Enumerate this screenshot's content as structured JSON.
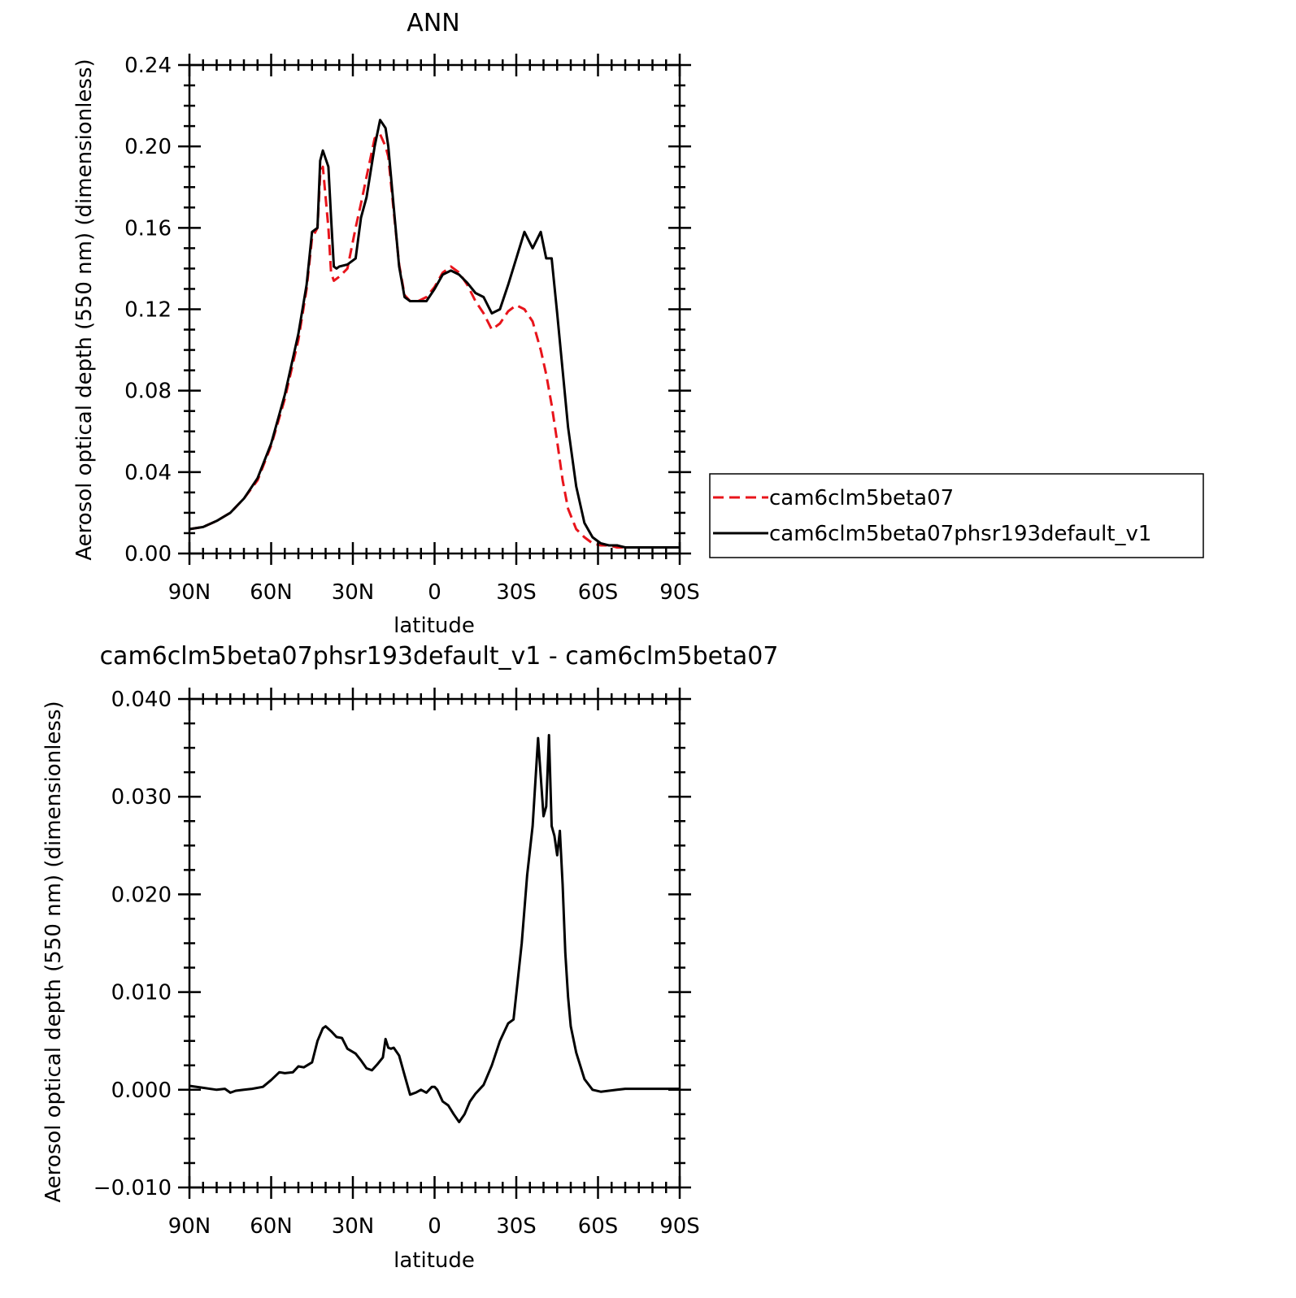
{
  "chart_data": [
    {
      "type": "line",
      "title": "ANN",
      "xlabel": "latitude",
      "ylabel": "Aerosol optical depth (550 nm) (dimensionless)",
      "xlim": [
        90,
        -90
      ],
      "ylim": [
        0,
        0.24
      ],
      "xtick_values": [
        90,
        60,
        30,
        0,
        -30,
        -60,
        -90
      ],
      "xtick_labels": [
        "90N",
        "60N",
        "30N",
        "0",
        "30S",
        "60S",
        "90S"
      ],
      "ytick_values": [
        0,
        0.04,
        0.08,
        0.12,
        0.16,
        0.2,
        0.24
      ],
      "ytick_labels": [
        "0.00",
        "0.04",
        "0.08",
        "0.12",
        "0.16",
        "0.20",
        "0.24"
      ],
      "legend": "right",
      "grid": false,
      "x": [
        90,
        85,
        80,
        75,
        70,
        65,
        60,
        55,
        50,
        47,
        45,
        43,
        42,
        41,
        39,
        38,
        37,
        36,
        35,
        32,
        29,
        27,
        25,
        22,
        20,
        18,
        17,
        15,
        13,
        11,
        9,
        6,
        3,
        0,
        -3,
        -6,
        -9,
        -12,
        -15,
        -18,
        -21,
        -24,
        -27,
        -30,
        -33,
        -36,
        -39,
        -41,
        -43,
        -45,
        -47,
        -49,
        -52,
        -55,
        -58,
        -61,
        -64,
        -67,
        -70,
        -73,
        -76,
        -80,
        -85,
        -90
      ],
      "series": [
        {
          "name": "cam6clm5beta07",
          "color": "#e8141b",
          "dash": true,
          "values": [
            0.012,
            0.013,
            0.016,
            0.02,
            0.027,
            0.036,
            0.053,
            0.076,
            0.105,
            0.13,
            0.155,
            0.16,
            0.186,
            0.19,
            0.16,
            0.138,
            0.134,
            0.135,
            0.136,
            0.14,
            0.16,
            0.172,
            0.185,
            0.204,
            0.206,
            0.2,
            0.195,
            0.168,
            0.142,
            0.127,
            0.124,
            0.124,
            0.126,
            0.131,
            0.138,
            0.141,
            0.138,
            0.132,
            0.124,
            0.118,
            0.11,
            0.113,
            0.119,
            0.122,
            0.12,
            0.114,
            0.1,
            0.088,
            0.073,
            0.055,
            0.036,
            0.022,
            0.012,
            0.008,
            0.005,
            0.004,
            0.004,
            0.003,
            0.003,
            0.003,
            0.003,
            0.003,
            0.003,
            0.003
          ]
        },
        {
          "name": "cam6clm5beta07phsr193default_v1",
          "color": "#000000",
          "dash": false,
          "values": [
            0.012,
            0.013,
            0.016,
            0.02,
            0.027,
            0.037,
            0.054,
            0.078,
            0.108,
            0.132,
            0.158,
            0.16,
            0.193,
            0.198,
            0.19,
            0.165,
            0.141,
            0.14,
            0.141,
            0.142,
            0.145,
            0.165,
            0.175,
            0.2,
            0.213,
            0.209,
            0.2,
            0.17,
            0.141,
            0.126,
            0.124,
            0.124,
            0.124,
            0.13,
            0.137,
            0.139,
            0.137,
            0.133,
            0.128,
            0.126,
            0.118,
            0.12,
            0.132,
            0.145,
            0.158,
            0.15,
            0.158,
            0.145,
            0.145,
            0.118,
            0.09,
            0.062,
            0.033,
            0.015,
            0.008,
            0.005,
            0.004,
            0.004,
            0.003,
            0.003,
            0.003,
            0.003,
            0.003,
            0.003
          ]
        }
      ]
    },
    {
      "type": "line",
      "title": "cam6clm5beta07phsr193default_v1 - cam6clm5beta07",
      "xlabel": "latitude",
      "ylabel": "Aerosol optical depth (550 nm) (dimensionless)",
      "xlim": [
        90,
        -90
      ],
      "ylim": [
        -0.01,
        0.04
      ],
      "xtick_values": [
        90,
        60,
        30,
        0,
        -30,
        -60,
        -90
      ],
      "xtick_labels": [
        "90N",
        "60N",
        "30N",
        "0",
        "30S",
        "60S",
        "90S"
      ],
      "ytick_values": [
        -0.01,
        0,
        0.01,
        0.02,
        0.03,
        0.04
      ],
      "ytick_labels": [
        "-0.010",
        "0.000",
        "0.010",
        "0.020",
        "0.030",
        "0.040"
      ],
      "grid": false,
      "x": [
        90,
        85,
        80,
        77,
        75,
        73,
        70,
        67,
        63,
        60,
        57,
        55,
        52,
        50,
        48,
        45,
        43,
        41,
        40,
        38,
        36,
        34,
        32,
        29,
        27,
        25,
        23,
        21,
        19,
        18,
        17,
        16,
        15,
        13,
        11,
        9,
        7,
        5,
        3,
        1,
        0,
        -1,
        -3,
        -5,
        -7,
        -9,
        -11,
        -13,
        -15,
        -18,
        -21,
        -24,
        -27,
        -29,
        -30,
        -32,
        -34,
        -36,
        -38,
        -40,
        -41,
        -42,
        -43,
        -44,
        -45,
        -46,
        -47,
        -48,
        -49,
        -50,
        -52,
        -55,
        -58,
        -61,
        -64,
        -67,
        -70,
        -75,
        -80,
        -85,
        -90
      ],
      "series": [
        {
          "name": "",
          "color": "#000000",
          "dash": false,
          "values": [
            0.0004,
            0.0002,
            0.0,
            0.0001,
            -0.0003,
            -0.0001,
            0.0,
            0.0001,
            0.0003,
            0.001,
            0.0018,
            0.0017,
            0.0018,
            0.0024,
            0.0023,
            0.0028,
            0.005,
            0.0063,
            0.0065,
            0.006,
            0.0054,
            0.0053,
            0.0042,
            0.0037,
            0.003,
            0.0022,
            0.002,
            0.0026,
            0.0033,
            0.0052,
            0.0043,
            0.0042,
            0.0043,
            0.0035,
            0.0015,
            -0.0005,
            -0.0003,
            0.0,
            -0.0003,
            0.0003,
            0.0003,
            0.0,
            -0.0012,
            -0.0016,
            -0.0025,
            -0.0033,
            -0.0025,
            -0.0012,
            -0.0004,
            0.0005,
            0.0025,
            0.005,
            0.0068,
            0.0072,
            0.0098,
            0.015,
            0.022,
            0.027,
            0.036,
            0.028,
            0.029,
            0.0363,
            0.027,
            0.026,
            0.024,
            0.0265,
            0.021,
            0.014,
            0.0095,
            0.0065,
            0.0038,
            0.0011,
            0.0,
            -0.0002,
            -0.0001,
            0.0,
            0.0001,
            0.0001,
            0.0001,
            0.0001,
            0.0001
          ]
        }
      ]
    }
  ]
}
